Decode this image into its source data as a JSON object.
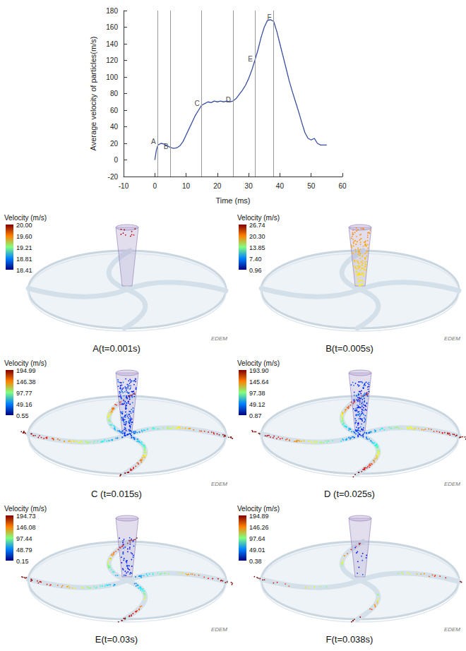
{
  "chart_data": {
    "type": "line",
    "x_label": "Time (ms)",
    "y_label": "Average velocity of particles(m/s)",
    "x": [
      0,
      0.5,
      1,
      2,
      3,
      4,
      5,
      6,
      7,
      8,
      9,
      10,
      11,
      12,
      13,
      14,
      15,
      16,
      17,
      18,
      19,
      20,
      21,
      22,
      23,
      24,
      25,
      26,
      27,
      28,
      29,
      30,
      31,
      32,
      33,
      34,
      35,
      36,
      37,
      38,
      39,
      40,
      41,
      42,
      43,
      44,
      45,
      46,
      47,
      48,
      49,
      50,
      51,
      52,
      53,
      54,
      55
    ],
    "values": [
      0,
      12,
      18,
      20,
      19,
      17,
      15,
      14,
      14.5,
      17,
      22,
      30,
      38,
      46,
      54,
      60,
      66,
      68,
      70,
      69,
      71,
      70,
      71,
      70,
      71,
      70,
      71,
      74,
      79,
      84,
      90,
      98,
      108,
      120,
      133,
      148,
      160,
      168,
      169,
      167,
      155,
      140,
      125,
      110,
      95,
      82,
      70,
      58,
      45,
      33,
      26,
      24,
      26,
      20,
      18,
      18,
      18
    ],
    "color": "#3b4fa0",
    "xlim": [
      -10,
      60
    ],
    "xticks": [
      -10,
      0,
      10,
      20,
      30,
      40,
      50,
      60
    ],
    "ylim": [
      -20,
      180
    ],
    "yticks": [
      -20,
      0,
      20,
      40,
      60,
      80,
      100,
      120,
      140,
      160,
      180
    ],
    "grid": false,
    "markers": [
      {
        "label": "A",
        "x": 1,
        "y": 22
      },
      {
        "label": "B",
        "x": 5,
        "y": 16
      },
      {
        "label": "C",
        "x": 15,
        "y": 68
      },
      {
        "label": "D",
        "x": 25,
        "y": 72
      },
      {
        "label": "E",
        "x": 32,
        "y": 122
      },
      {
        "label": "F",
        "x": 38,
        "y": 172
      }
    ]
  },
  "panels": [
    {
      "caption": "A(t=0.001s)",
      "colorbar_title": "Velocity (m/s)",
      "colorbar_ticks": [
        "20.00",
        "19.60",
        "19.21",
        "18.81",
        "18.41"
      ],
      "logo": "EDEM"
    },
    {
      "caption": "B(t=0.005s)",
      "colorbar_title": "Velocity (m/s)",
      "colorbar_ticks": [
        "26.74",
        "20.30",
        "13.85",
        "7.40",
        "0.96"
      ],
      "logo": "EDEM"
    },
    {
      "caption": "C (t=0.015s)",
      "colorbar_title": "Velocity (m/s)",
      "colorbar_ticks": [
        "194.99",
        "146.38",
        "97.77",
        "49.16",
        "0.55"
      ],
      "logo": "EDEM"
    },
    {
      "caption": "D (t=0.025s)",
      "colorbar_title": "Velocity (m/s)",
      "colorbar_ticks": [
        "193.90",
        "145.64",
        "97.38",
        "49.12",
        "0.87"
      ],
      "logo": "EDEM"
    },
    {
      "caption": "E(t=0.03s)",
      "colorbar_title": "Velocity (m/s)",
      "colorbar_ticks": [
        "194.73",
        "146.08",
        "97.44",
        "48.79",
        "0.15"
      ],
      "logo": "EDEM"
    },
    {
      "caption": "F(t=0.038s)",
      "colorbar_title": "Velocity (m/s)",
      "colorbar_ticks": [
        "194.89",
        "146.26",
        "97.64",
        "49.01",
        "0.38"
      ],
      "logo": "EDEM"
    }
  ]
}
